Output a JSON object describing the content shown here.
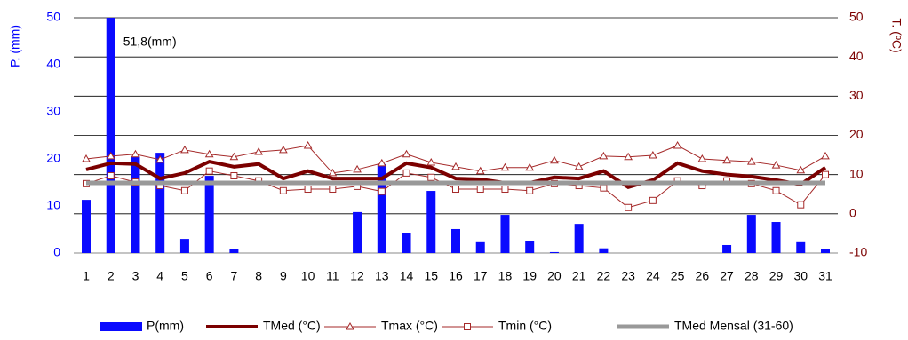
{
  "chart_data": {
    "type": "bar",
    "y_label": "P. (mm)",
    "y2_label": "T. (ºC)",
    "categories": [
      "1",
      "2",
      "3",
      "4",
      "5",
      "6",
      "7",
      "8",
      "9",
      "10",
      "11",
      "12",
      "13",
      "14",
      "15",
      "16",
      "17",
      "18",
      "19",
      "20",
      "21",
      "22",
      "23",
      "24",
      "25",
      "26",
      "27",
      "28",
      "29",
      "30",
      "31"
    ],
    "ylim": [
      0,
      50
    ],
    "yticks": [
      0,
      10,
      20,
      30,
      40,
      50
    ],
    "y2lim": [
      -10,
      50
    ],
    "y2ticks": [
      -10,
      0,
      10,
      20,
      30,
      40,
      50
    ],
    "grid": true,
    "series": [
      {
        "name": "P(mm)",
        "kind": "bar",
        "color": "#0a0aff",
        "values": [
          11.3,
          51.8,
          20.5,
          21.3,
          3.0,
          16.4,
          0.8,
          0,
          0,
          0,
          0,
          8.7,
          18.9,
          4.2,
          13.2,
          5.1,
          2.3,
          8.1,
          2.5,
          0.2,
          6.2,
          1.0,
          0,
          0,
          0,
          0,
          1.7,
          8.1,
          6.6,
          2.3,
          0.8
        ],
        "value_labels": [
          null,
          "51,8(mm)",
          null,
          null,
          null,
          null,
          null,
          null,
          null,
          null,
          null,
          null,
          null,
          null,
          null,
          null,
          null,
          null,
          null,
          null,
          null,
          null,
          null,
          null,
          null,
          null,
          null,
          null,
          null,
          null,
          null
        ]
      },
      {
        "name": "TMed (°C)",
        "kind": "line",
        "axis": "y2",
        "color": "#7b0000",
        "width": 4,
        "values": [
          11.3,
          12.9,
          12.7,
          9.0,
          10.4,
          13.3,
          12.0,
          12.7,
          9.0,
          10.9,
          9.0,
          9.0,
          9.0,
          12.9,
          11.8,
          9.0,
          8.8,
          7.9,
          7.9,
          9.3,
          9.0,
          10.9,
          6.8,
          8.6,
          12.9,
          10.9,
          10.0,
          9.5,
          8.6,
          7.5,
          11.8
        ]
      },
      {
        "name": "Tmax (°C)",
        "kind": "line",
        "axis": "y2",
        "color": "#a52a2a",
        "width": 1,
        "marker": "triangle",
        "values": [
          14.0,
          14.7,
          15.2,
          13.8,
          16.3,
          15.2,
          14.5,
          15.8,
          16.3,
          17.4,
          10.4,
          11.3,
          12.9,
          15.2,
          13.1,
          12.0,
          10.9,
          11.8,
          11.8,
          13.6,
          12.0,
          14.7,
          14.5,
          14.9,
          17.4,
          14.0,
          13.6,
          13.3,
          12.4,
          11.1,
          14.7
        ]
      },
      {
        "name": "Tmin (°C)",
        "kind": "line",
        "axis": "y2",
        "color": "#a52a2a",
        "width": 1,
        "marker": "square",
        "values": [
          7.7,
          9.7,
          8.1,
          7.2,
          5.9,
          10.9,
          9.7,
          8.4,
          5.9,
          6.3,
          6.3,
          7.0,
          5.7,
          10.4,
          9.3,
          6.3,
          6.3,
          6.3,
          5.9,
          7.7,
          7.2,
          6.6,
          1.6,
          3.4,
          8.4,
          7.2,
          8.4,
          7.7,
          5.9,
          2.3,
          10.0
        ]
      },
      {
        "name": "TMed Mensal (31-60)",
        "kind": "line",
        "axis": "y2",
        "color": "#999999",
        "width": 5,
        "values": [
          7.9,
          7.9,
          7.9,
          7.9,
          7.9,
          7.9,
          7.9,
          7.9,
          7.9,
          7.9,
          7.9,
          7.9,
          7.9,
          7.9,
          7.9,
          7.9,
          7.9,
          7.9,
          7.9,
          7.9,
          7.9,
          7.9,
          7.9,
          7.9,
          7.9,
          7.9,
          7.9,
          7.9,
          7.9,
          7.9,
          7.9
        ]
      }
    ]
  }
}
